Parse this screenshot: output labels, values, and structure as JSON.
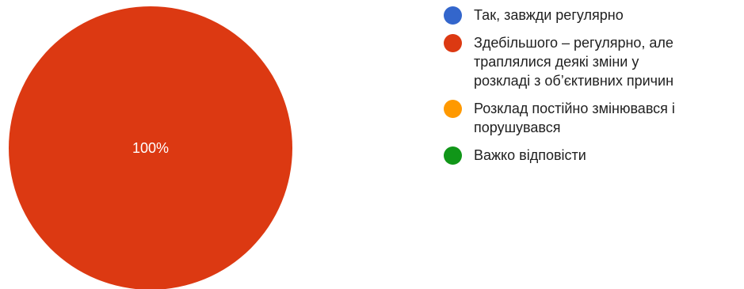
{
  "chart_data": {
    "type": "pie",
    "title": "",
    "categories": [
      "Так, завжди регулярно",
      "Здебільшого – регулярно, але\nтраплялися деякі зміни у\nрозкладі з об’єктивних причин",
      "Розклад постійно змінювався і\nпорушувався",
      "Важко відповісти"
    ],
    "values": [
      0,
      100,
      0,
      0
    ],
    "colors": [
      "#3366cc",
      "#dc3912",
      "#ff9900",
      "#109618"
    ],
    "data_labels": [
      "",
      "100%",
      "",
      ""
    ],
    "legend_position": "right"
  }
}
